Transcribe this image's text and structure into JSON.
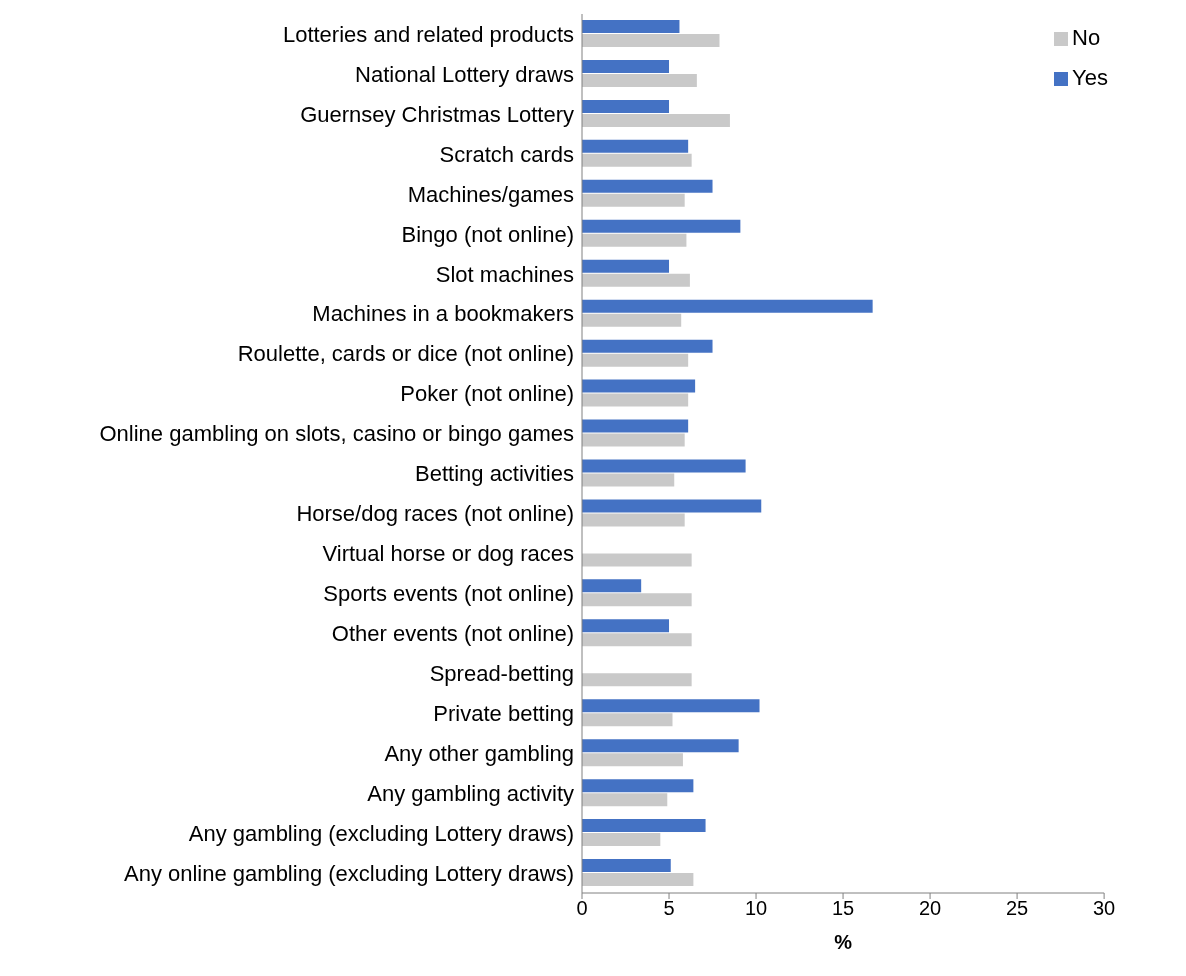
{
  "chart_data": {
    "type": "bar",
    "orientation": "horizontal",
    "xlabel": "%",
    "categories": [
      "Lotteries and related products",
      "National Lottery draws",
      "Guernsey Christmas Lottery",
      "Scratch cards",
      "Machines/games",
      "Bingo (not online)",
      "Slot machines",
      "Machines in a bookmakers",
      "Roulette, cards or dice (not online)",
      "Poker (not online)",
      "Online gambling on slots, casino or bingo games",
      "Betting activities",
      "Horse/dog races (not online)",
      "Virtual horse or dog races",
      "Sports events (not online)",
      "Other events (not online)",
      "Spread-betting",
      "Private betting",
      "Any other gambling",
      "Any gambling activity",
      "Any gambling (excluding Lottery draws)",
      "Any online gambling (excluding Lottery draws)"
    ],
    "series": [
      {
        "name": "Yes",
        "color": "#4472c4",
        "values": [
          5.6,
          5.0,
          5.0,
          6.1,
          7.5,
          9.1,
          5.0,
          16.7,
          7.5,
          6.5,
          6.1,
          9.4,
          10.3,
          null,
          3.4,
          5.0,
          null,
          10.2,
          9.0,
          6.4,
          7.1,
          5.1
        ]
      },
      {
        "name": "No",
        "color": "#c9c9c9",
        "values": [
          7.9,
          6.6,
          8.5,
          6.3,
          5.9,
          6.0,
          6.2,
          5.7,
          6.1,
          6.1,
          5.9,
          5.3,
          5.9,
          6.3,
          6.3,
          6.3,
          6.3,
          5.2,
          5.8,
          4.9,
          4.5,
          6.4
        ]
      }
    ],
    "xlim": [
      0,
      30
    ],
    "xticks": [
      0,
      5,
      10,
      15,
      20,
      25,
      30
    ],
    "grid": false,
    "legend": "top right"
  }
}
